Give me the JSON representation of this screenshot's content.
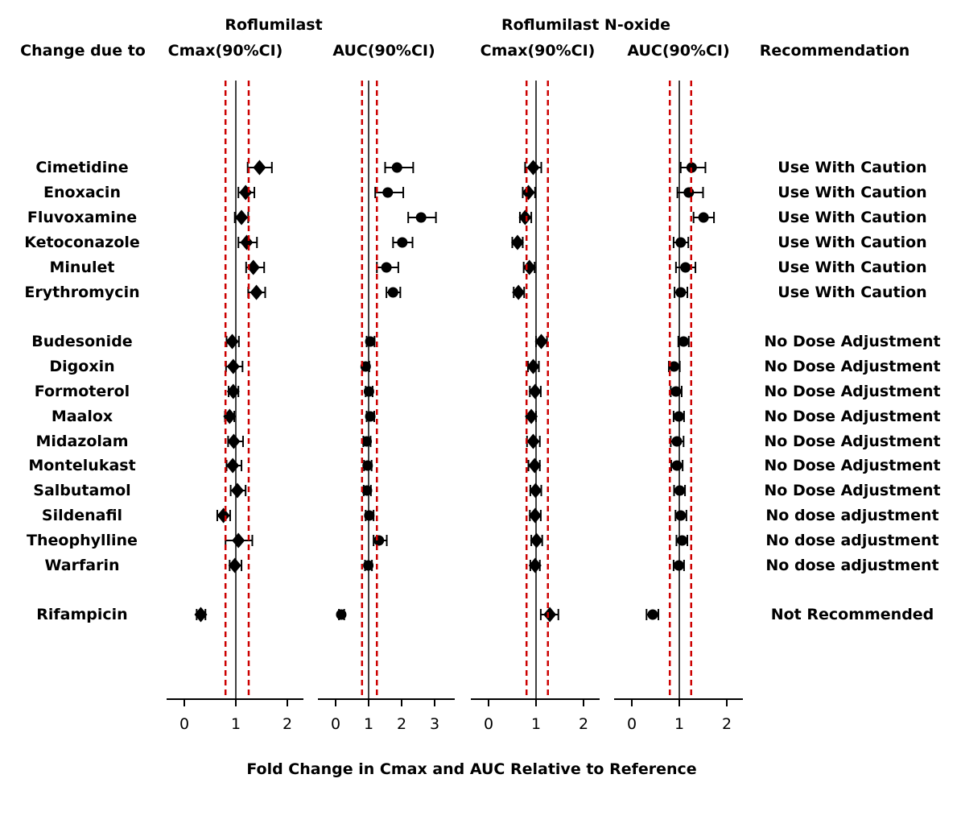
{
  "chart_data": {
    "type": "forest",
    "caption": "Fold Change in Cmax and AUC Relative to Reference",
    "row_header": "Change due to",
    "recommendation_header": "Recommendation",
    "column_groups": [
      "Roflumilast",
      "Roflumilast N-oxide"
    ],
    "columns": [
      "Cmax(90%CI)",
      "AUC(90%CI)",
      "Cmax(90%CI)",
      "AUC(90%CI)"
    ],
    "reference": {
      "solid_line": 1.0,
      "dashed_lines": [
        0.8,
        1.25
      ],
      "dashed_color": "#cc0000",
      "solid_color": "#000000"
    },
    "panels": [
      {
        "id": "rof_cmax",
        "group": "Roflumilast",
        "measure": "Cmax(90%CI)",
        "marker": "diamond",
        "ticks": [
          0,
          1,
          2
        ],
        "xlim": [
          -0.34,
          2.31
        ]
      },
      {
        "id": "rof_auc",
        "group": "Roflumilast",
        "measure": "AUC(90%CI)",
        "marker": "circle",
        "ticks": [
          0,
          1,
          2,
          3
        ],
        "xlim": [
          -0.54,
          3.61
        ]
      },
      {
        "id": "nox_cmax",
        "group": "Roflumilast N-oxide",
        "measure": "Cmax(90%CI)",
        "marker": "diamond",
        "ticks": [
          0,
          1,
          2
        ],
        "xlim": [
          -0.37,
          2.34
        ]
      },
      {
        "id": "nox_auc",
        "group": "Roflumilast N-oxide",
        "measure": "AUC(90%CI)",
        "marker": "circle",
        "ticks": [
          0,
          1,
          2
        ],
        "xlim": [
          -0.37,
          2.34
        ]
      }
    ],
    "rows": [
      {
        "drug": "Cimetidine",
        "recommendation": "Use With Caution",
        "rof_cmax": [
          1.46,
          1.23,
          1.7
        ],
        "rof_auc": [
          1.86,
          1.5,
          2.35
        ],
        "nox_cmax": [
          0.94,
          0.77,
          1.11
        ],
        "nox_auc": [
          1.26,
          1.03,
          1.55
        ]
      },
      {
        "drug": "Enoxacin",
        "recommendation": "Use With Caution",
        "rof_cmax": [
          1.19,
          1.05,
          1.36
        ],
        "rof_auc": [
          1.58,
          1.2,
          2.05
        ],
        "nox_cmax": [
          0.84,
          0.72,
          0.98
        ],
        "nox_auc": [
          1.2,
          0.96,
          1.5
        ]
      },
      {
        "drug": "Fluvoxamine",
        "recommendation": "Use With Caution",
        "rof_cmax": [
          1.11,
          0.98,
          1.24
        ],
        "rof_auc": [
          2.59,
          2.2,
          3.04
        ],
        "nox_cmax": [
          0.77,
          0.66,
          0.9
        ],
        "nox_auc": [
          1.51,
          1.3,
          1.73
        ]
      },
      {
        "drug": "Ketoconazole",
        "recommendation": "Use With Caution",
        "rof_cmax": [
          1.21,
          1.05,
          1.41
        ],
        "rof_auc": [
          2.02,
          1.74,
          2.33
        ],
        "nox_cmax": [
          0.61,
          0.5,
          0.72
        ],
        "nox_auc": [
          1.03,
          0.88,
          1.19
        ]
      },
      {
        "drug": "Minulet",
        "recommendation": "Use With Caution",
        "rof_cmax": [
          1.34,
          1.2,
          1.55
        ],
        "rof_auc": [
          1.54,
          1.25,
          1.9
        ],
        "nox_cmax": [
          0.86,
          0.74,
          0.97
        ],
        "nox_auc": [
          1.13,
          0.93,
          1.34
        ]
      },
      {
        "drug": "Erythromycin",
        "recommendation": "Use With Caution",
        "rof_cmax": [
          1.4,
          1.24,
          1.57
        ],
        "rof_auc": [
          1.74,
          1.54,
          1.96
        ],
        "nox_cmax": [
          0.63,
          0.53,
          0.75
        ],
        "nox_auc": [
          1.03,
          0.9,
          1.17
        ]
      },
      {
        "drug": "Budesonide",
        "recommendation": "No Dose Adjustment",
        "rof_cmax": [
          0.93,
          0.82,
          1.06
        ],
        "rof_auc": [
          1.05,
          0.94,
          1.18
        ],
        "nox_cmax": [
          1.11,
          1.0,
          1.23
        ],
        "nox_auc": [
          1.09,
          0.98,
          1.2
        ]
      },
      {
        "drug": "Digoxin",
        "recommendation": "No Dose Adjustment",
        "rof_cmax": [
          0.95,
          0.81,
          1.13
        ],
        "rof_auc": [
          0.91,
          0.81,
          1.02
        ],
        "nox_cmax": [
          0.94,
          0.83,
          1.06
        ],
        "nox_auc": [
          0.89,
          0.78,
          1.01
        ]
      },
      {
        "drug": "Formoterol",
        "recommendation": "No Dose Adjustment",
        "rof_cmax": [
          0.95,
          0.86,
          1.05
        ],
        "rof_auc": [
          1.01,
          0.91,
          1.12
        ],
        "nox_cmax": [
          0.98,
          0.87,
          1.1
        ],
        "nox_auc": [
          0.93,
          0.82,
          1.05
        ]
      },
      {
        "drug": "Maalox",
        "recommendation": "No Dose Adjustment",
        "rof_cmax": [
          0.88,
          0.79,
          0.97
        ],
        "rof_auc": [
          1.05,
          0.94,
          1.17
        ],
        "nox_cmax": [
          0.9,
          0.8,
          1.0
        ],
        "nox_auc": [
          0.99,
          0.88,
          1.1
        ]
      },
      {
        "drug": "Midazolam",
        "recommendation": "No Dose Adjustment",
        "rof_cmax": [
          0.96,
          0.85,
          1.14
        ],
        "rof_auc": [
          0.94,
          0.84,
          1.06
        ],
        "nox_cmax": [
          0.94,
          0.81,
          1.08
        ],
        "nox_auc": [
          0.95,
          0.82,
          1.09
        ]
      },
      {
        "drug": "Montelukast",
        "recommendation": "No Dose Adjustment",
        "rof_cmax": [
          0.94,
          0.82,
          1.11
        ],
        "rof_auc": [
          0.97,
          0.86,
          1.09
        ],
        "nox_cmax": [
          0.97,
          0.84,
          1.08
        ],
        "nox_auc": [
          0.95,
          0.83,
          1.07
        ]
      },
      {
        "drug": "Salbutamol",
        "recommendation": "No Dose Adjustment",
        "rof_cmax": [
          1.03,
          0.9,
          1.19
        ],
        "rof_auc": [
          0.95,
          0.85,
          1.07
        ],
        "nox_cmax": [
          0.99,
          0.88,
          1.11
        ],
        "nox_auc": [
          1.01,
          0.89,
          1.12
        ]
      },
      {
        "drug": "Sildenafil",
        "recommendation": "No dose adjustment",
        "rof_cmax": [
          0.76,
          0.64,
          0.89
        ],
        "rof_auc": [
          1.02,
          0.91,
          1.15
        ],
        "nox_cmax": [
          0.98,
          0.87,
          1.1
        ],
        "nox_auc": [
          1.03,
          0.92,
          1.15
        ]
      },
      {
        "drug": "Theophylline",
        "recommendation": "No dose adjustment",
        "rof_cmax": [
          1.05,
          0.8,
          1.32
        ],
        "rof_auc": [
          1.31,
          1.15,
          1.55
        ],
        "nox_cmax": [
          1.01,
          0.9,
          1.13
        ],
        "nox_auc": [
          1.06,
          0.94,
          1.17
        ]
      },
      {
        "drug": "Warfarin",
        "recommendation": "No dose adjustment",
        "rof_cmax": [
          0.98,
          0.88,
          1.11
        ],
        "rof_auc": [
          0.99,
          0.89,
          1.1
        ],
        "nox_cmax": [
          0.98,
          0.88,
          1.08
        ],
        "nox_auc": [
          0.99,
          0.88,
          1.1
        ]
      },
      {
        "drug": "Rifampicin",
        "recommendation": "Not Recommended",
        "rof_cmax": [
          0.32,
          0.24,
          0.41
        ],
        "rof_auc": [
          0.17,
          0.1,
          0.26
        ],
        "nox_cmax": [
          1.29,
          1.1,
          1.47
        ],
        "nox_auc": [
          0.44,
          0.31,
          0.56
        ]
      }
    ]
  }
}
